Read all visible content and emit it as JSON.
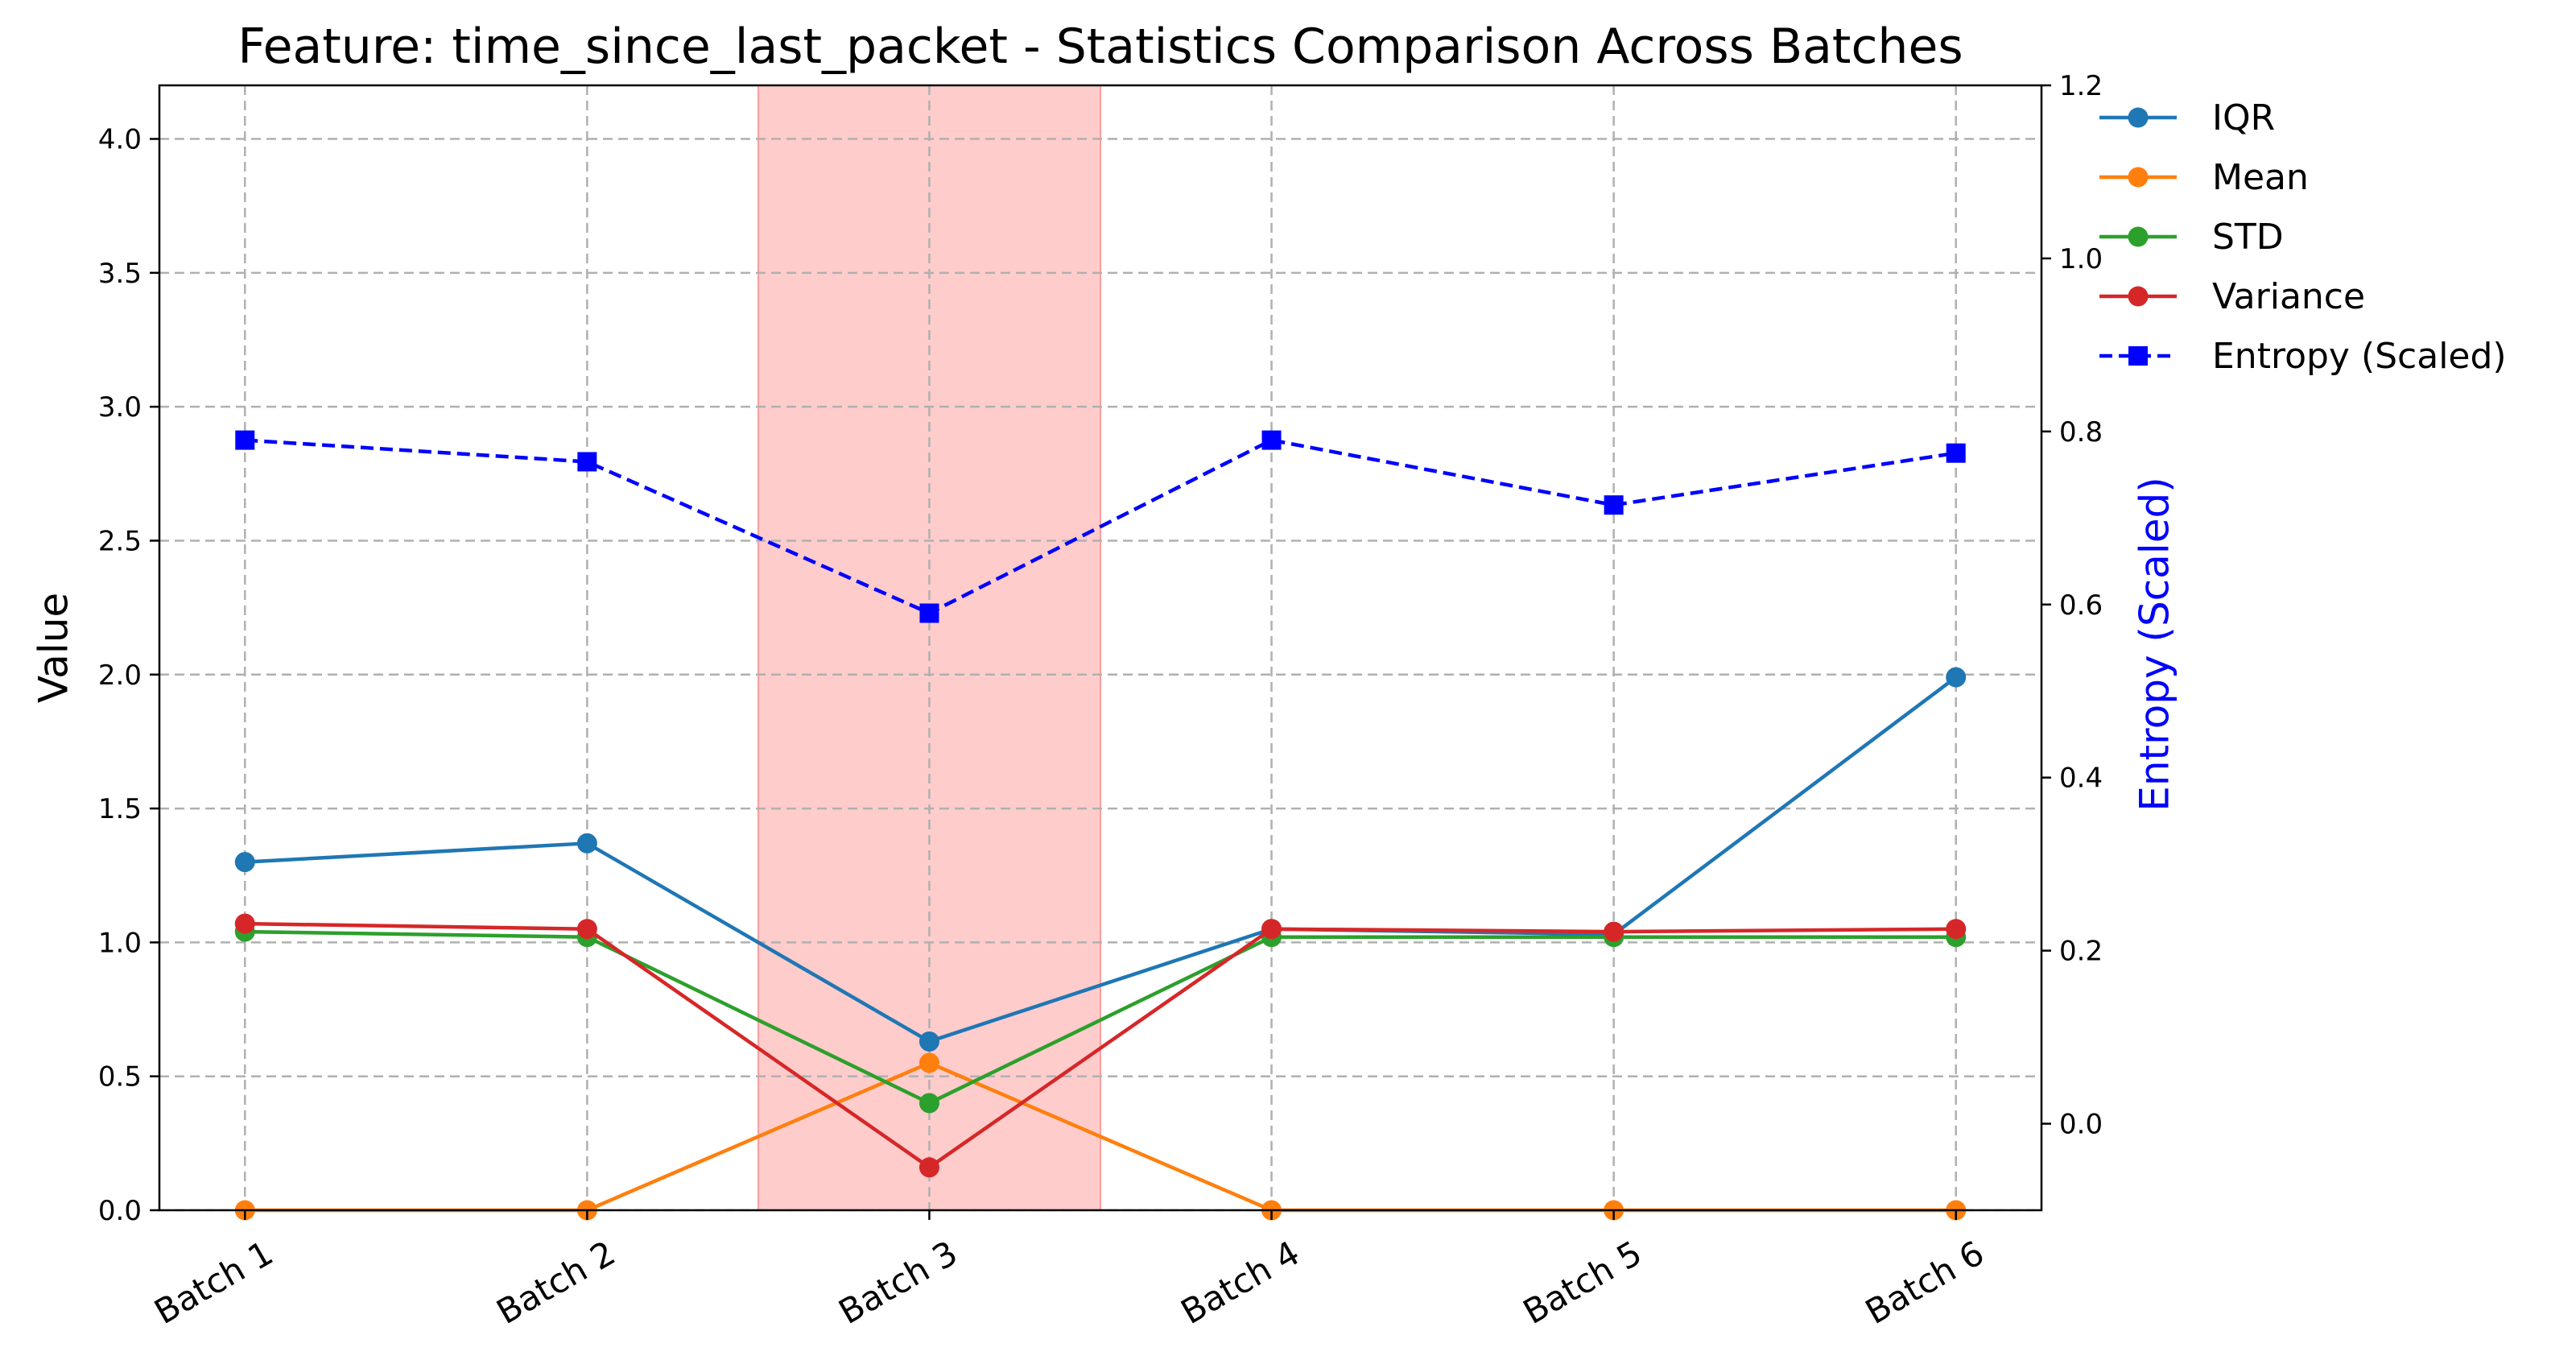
{
  "chart_data": {
    "type": "line",
    "title": "Feature: time_since_last_packet - Statistics Comparison Across Batches",
    "ylabel": "Value",
    "y2label": "Entropy (Scaled)",
    "xlabel": "",
    "categories": [
      "Batch 1",
      "Batch 2",
      "Batch 3",
      "Batch 4",
      "Batch 5",
      "Batch 6"
    ],
    "ylim": [
      0,
      4.2
    ],
    "yticks": [
      "0.0",
      "0.5",
      "1.0",
      "1.5",
      "2.0",
      "2.5",
      "3.0",
      "3.5",
      "4.0"
    ],
    "y2lim": [
      -0.1,
      1.2
    ],
    "y2ticks": [
      "0.0",
      "0.2",
      "0.4",
      "0.6",
      "0.8",
      "1.0",
      "1.2"
    ],
    "grid": true,
    "legend_position": "outside-top-right",
    "highlight": {
      "category": "Batch 3",
      "color": "#ffcccc"
    },
    "series": [
      {
        "name": "IQR",
        "axis": "left",
        "marker": "circle",
        "style": "solid",
        "color": "#1f77b4",
        "values": [
          1.3,
          1.37,
          0.63,
          1.05,
          1.03,
          1.99
        ]
      },
      {
        "name": "Mean",
        "axis": "left",
        "marker": "circle",
        "style": "solid",
        "color": "#ff7f0e",
        "values": [
          0.0,
          0.0,
          0.55,
          0.0,
          0.0,
          0.0
        ]
      },
      {
        "name": "STD",
        "axis": "left",
        "marker": "circle",
        "style": "solid",
        "color": "#2ca02c",
        "values": [
          1.04,
          1.02,
          0.4,
          1.02,
          1.02,
          1.02
        ]
      },
      {
        "name": "Variance",
        "axis": "left",
        "marker": "circle",
        "style": "solid",
        "color": "#d62728",
        "values": [
          1.07,
          1.05,
          0.16,
          1.05,
          1.04,
          1.05
        ]
      },
      {
        "name": "Entropy (Scaled)",
        "axis": "right",
        "marker": "square",
        "style": "dashed",
        "color": "#0000ff",
        "values": [
          0.79,
          0.765,
          0.59,
          0.79,
          0.715,
          0.775
        ]
      }
    ]
  }
}
